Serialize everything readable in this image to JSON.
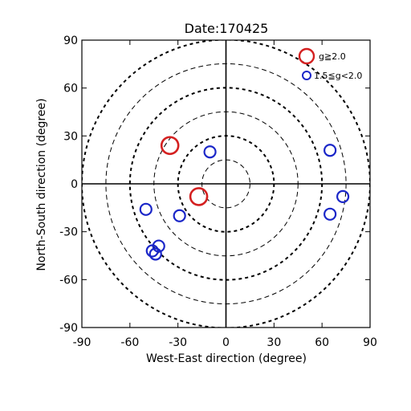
{
  "chart_data": {
    "type": "scatter",
    "title": "Date:170425",
    "xlabel": "West-East direction (degree)",
    "ylabel": "North-South direction (degree)",
    "xlim": [
      -90,
      90
    ],
    "ylim": [
      -90,
      90
    ],
    "xticks": [
      "-90",
      "-60",
      "-30",
      "0",
      "30",
      "60",
      "90"
    ],
    "yticks": [
      "-90",
      "-60",
      "-30",
      "0",
      "30",
      "60",
      "90"
    ],
    "rings_deg": [
      15,
      30,
      45,
      60,
      75,
      90
    ],
    "legend_placement": "top-right",
    "series": [
      {
        "name": "g≧2.0",
        "color": "#d42020",
        "points": [
          {
            "x": -35,
            "y": 24
          },
          {
            "x": -17,
            "y": -8
          }
        ]
      },
      {
        "name": "1.5≦g<2.0",
        "color": "#1a26c8",
        "points": [
          {
            "x": -10,
            "y": 20
          },
          {
            "x": 65,
            "y": 21
          },
          {
            "x": 73,
            "y": -8
          },
          {
            "x": 65,
            "y": -19
          },
          {
            "x": -50,
            "y": -16
          },
          {
            "x": -29,
            "y": -20
          },
          {
            "x": -42,
            "y": -39
          },
          {
            "x": -46,
            "y": -42
          },
          {
            "x": -44,
            "y": -44
          }
        ]
      }
    ]
  }
}
